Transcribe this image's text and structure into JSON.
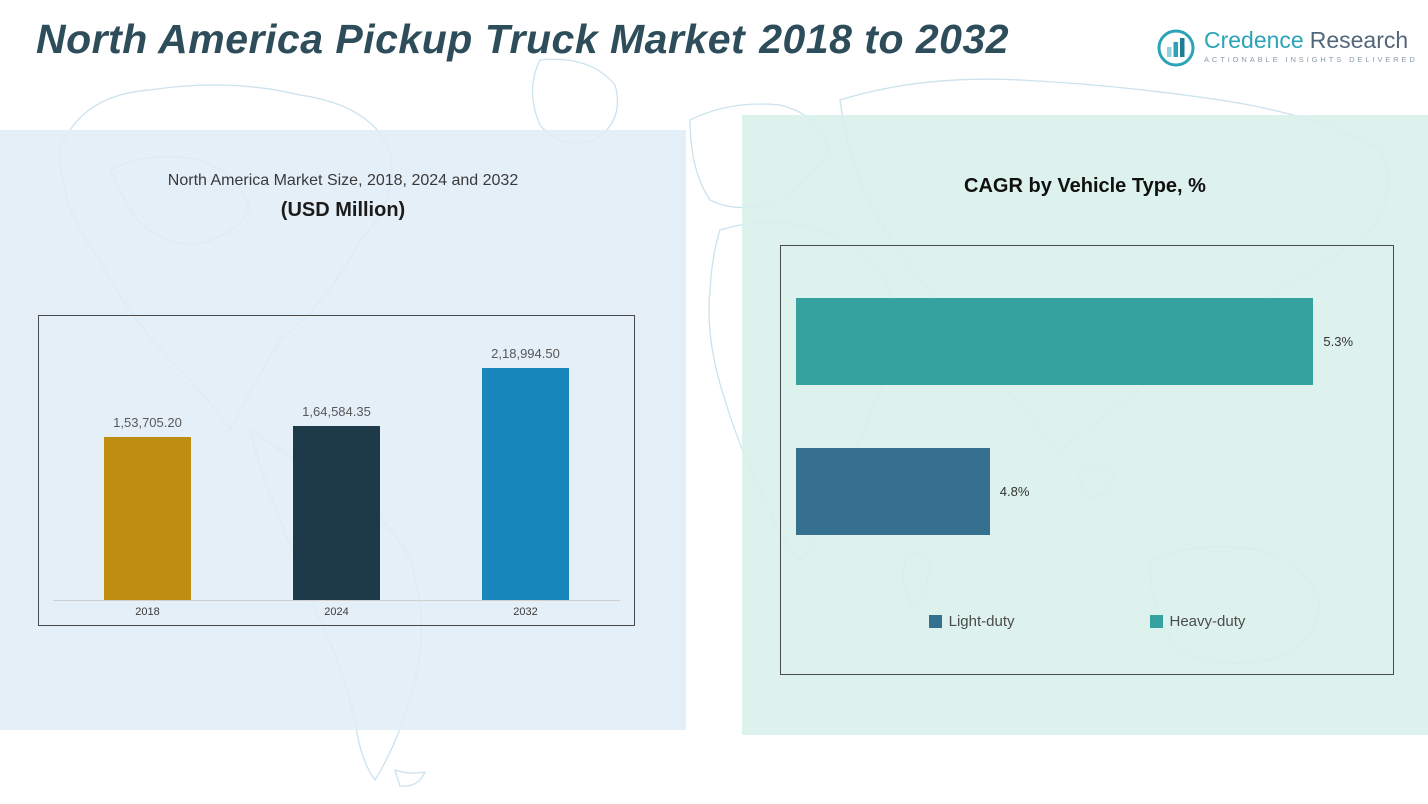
{
  "header": {
    "title_main": "North America Pickup Truck Market",
    "title_range": "2018 to 2032",
    "title_color": "#2e4d5a",
    "logo": {
      "icon": "bar-chart-icon",
      "brand_first": "Credence",
      "brand_second": "Research",
      "brand_first_color": "#2ba4b7",
      "brand_second_color": "#53677a",
      "tagline": "Actionable Insights Delivered"
    }
  },
  "panels": {
    "left_bg": "#e4eff7",
    "right_bg": "#ddf0ea"
  },
  "chart_data": [
    {
      "type": "bar",
      "title": "North America Market Size, 2018, 2024 and 2032",
      "subtitle": "(USD Million)",
      "categories": [
        "2018",
        "2024",
        "2032"
      ],
      "values": [
        153705.2,
        164584.35,
        218994.5
      ],
      "value_labels": [
        "1,53,705.20",
        "1,64,584.35",
        "2,18,994.50"
      ],
      "bar_colors": [
        "#bf8e10",
        "#1e3a49",
        "#1787bc"
      ],
      "ylim": [
        0,
        250000
      ],
      "xlabel": "",
      "ylabel": "",
      "grid": false,
      "legend_position": "none"
    },
    {
      "type": "bar-horizontal",
      "title": "CAGR by Vehicle Type, %",
      "categories": [
        "Heavy-duty",
        "Light-duty"
      ],
      "values": [
        5.3,
        4.8
      ],
      "value_labels": [
        "5.3%",
        "4.8%"
      ],
      "bar_colors": [
        "#36a2a0",
        "#35708f"
      ],
      "xlim": [
        4.5,
        5.4
      ],
      "grid": false,
      "legend_position": "bottom",
      "legend": [
        {
          "label": "Light-duty",
          "color": "#35708f"
        },
        {
          "label": "Heavy-duty",
          "color": "#36a2a0"
        }
      ]
    }
  ]
}
